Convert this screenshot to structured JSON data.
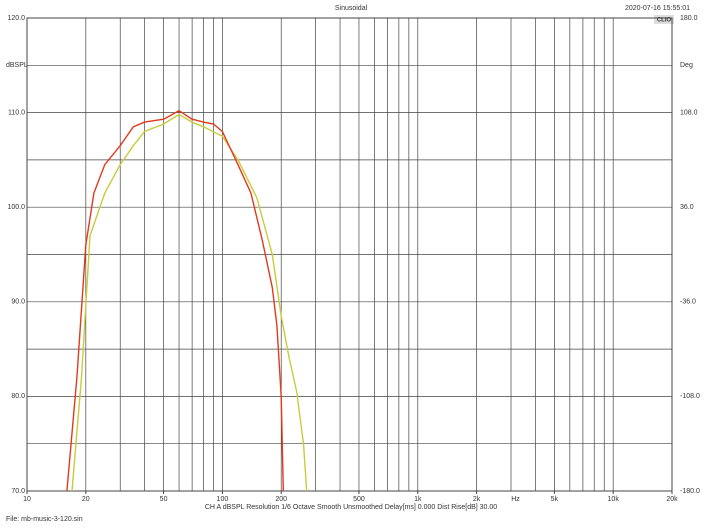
{
  "chart_data": {
    "type": "line",
    "title": "Sinusoidal",
    "timestamp": "2020-07-16 15:55:01",
    "brand": "CLIO",
    "ylabel": "dBSPL",
    "y2label": "Deg",
    "x_unit": "Hz",
    "log_x": true,
    "grid": true,
    "xlim": [
      10,
      20000
    ],
    "ylim": [
      70,
      120
    ],
    "y2lim": [
      -180,
      180
    ],
    "xticks": [
      {
        "value": 10,
        "label": "10"
      },
      20,
      50,
      100,
      200,
      500,
      {
        "value": 1000,
        "label": "1k"
      },
      {
        "value": 2000,
        "label": "2k"
      },
      {
        "value": 5000,
        "label": "5k"
      },
      {
        "value": 10000,
        "label": "10k"
      },
      {
        "value": 20000,
        "label": "20k"
      }
    ],
    "xgrid": [
      20,
      30,
      40,
      50,
      60,
      70,
      80,
      90,
      100,
      200,
      300,
      400,
      500,
      600,
      700,
      800,
      900,
      1000,
      2000,
      3000,
      4000,
      5000,
      6000,
      7000,
      8000,
      9000,
      10000
    ],
    "yticks": [
      {
        "value": 70,
        "label": "70.0"
      },
      {
        "value": 80,
        "label": "80.0"
      },
      {
        "value": 90,
        "label": "90.0"
      },
      {
        "value": 100,
        "label": "100.0"
      },
      {
        "value": 110,
        "label": "110.0"
      },
      {
        "value": 120,
        "label": "120.0"
      }
    ],
    "ygrid_minor": [
      75,
      85,
      95,
      105,
      115
    ],
    "y2ticks": [
      {
        "value": -180,
        "label": "-180.0"
      },
      {
        "value": -108,
        "label": "-108.0"
      },
      {
        "value": -36,
        "label": "-36.0"
      },
      {
        "value": 36,
        "label": "36.0"
      },
      {
        "value": 108,
        "label": "108.0"
      },
      {
        "value": 180,
        "label": "180.0"
      }
    ],
    "series": [
      {
        "name": "red",
        "color": "#e03a1e",
        "x": [
          16,
          18,
          20,
          22,
          25,
          30,
          35,
          40,
          50,
          60,
          70,
          80,
          90,
          100,
          120,
          140,
          160,
          180,
          190,
          200,
          205
        ],
        "values": [
          70,
          82,
          96,
          101.5,
          104.5,
          106.5,
          108.5,
          109,
          109.3,
          110.2,
          109.3,
          109,
          108.8,
          108,
          104.5,
          101.5,
          96.5,
          91.5,
          87.5,
          80,
          70
        ]
      },
      {
        "name": "yellow",
        "color": "#c8cc3a",
        "x": [
          17,
          19,
          21,
          25,
          30,
          35,
          40,
          50,
          60,
          70,
          80,
          100,
          120,
          150,
          180,
          200,
          220,
          240,
          260,
          270
        ],
        "values": [
          70,
          82,
          97,
          101.5,
          104.5,
          106.5,
          108,
          108.8,
          109.8,
          109,
          108.5,
          107.5,
          105,
          101,
          95,
          88.5,
          84,
          80.5,
          75,
          70
        ]
      }
    ],
    "footer": "CH A   dBSPL   Resolution 1/6 Octave   Smooth Unsmoothed   Delay[ms] 0.000   Dist Rise[dB] 30.00",
    "file": "File: mb-music-3-120.sin"
  }
}
